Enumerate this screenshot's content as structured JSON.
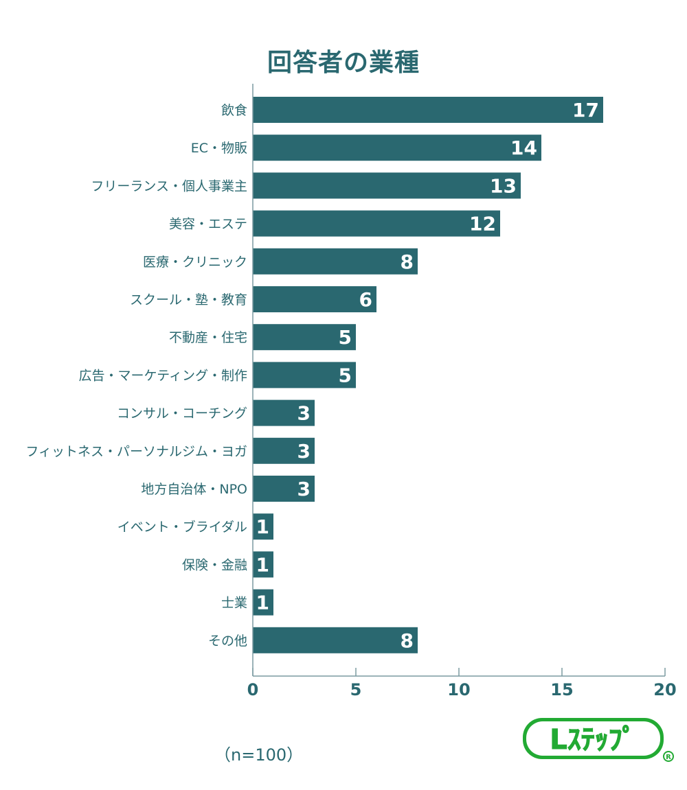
{
  "chart_data": {
    "type": "bar",
    "orientation": "horizontal",
    "title": "回答者の業種",
    "categories": [
      "飲食",
      "EC・物販",
      "フリーランス・個人事業主",
      "美容・エステ",
      "医療・クリニック",
      "スクール・塾・教育",
      "不動産・住宅",
      "広告・マーケティング・制作",
      "コンサル・コーチング",
      "フィットネス・パーソナルジム・ヨガ",
      "地方自治体・NPO",
      "イベント・ブライダル",
      "保険・金融",
      "士業",
      "その他"
    ],
    "values": [
      17,
      14,
      13,
      12,
      8,
      6,
      5,
      5,
      3,
      3,
      3,
      1,
      1,
      1,
      8
    ],
    "xlim": [
      0,
      20
    ],
    "xticks": [
      0,
      5,
      10,
      15,
      20
    ],
    "grid": false,
    "colors": {
      "bar": "#2a6870",
      "text": "#2a6870",
      "axis": "#7a9aa0"
    }
  },
  "note": "（n=100）",
  "logo": {
    "text": "Lステップ",
    "color": "#22aa33"
  }
}
